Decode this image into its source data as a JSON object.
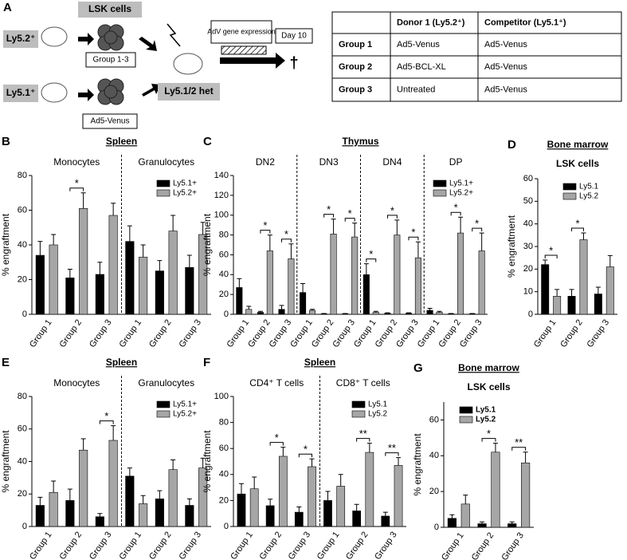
{
  "panel_a": {
    "label": "A",
    "lsk_cells": "LSK cells",
    "donor1": "Ly5.2⁺",
    "donor2": "Ly5.1⁺",
    "cells1": "Group 1-3",
    "cells2": "Ad5-Venus",
    "recipient": "Ly5.1/2 het",
    "expression": "AdV gene expression",
    "day": "Day 10",
    "death": "†",
    "table": {
      "header": [
        null,
        "Donor 1 (Ly5.2⁺)",
        "Competitor (Ly5.1⁺)"
      ],
      "rows": [
        [
          "Group 1",
          "Ad5-Venus",
          "Ad5-Venus"
        ],
        [
          "Group 2",
          "Ad5-BCL-XL",
          "Ad5-Venus"
        ],
        [
          "Group 3",
          "Untreated",
          "Ad5-Venus"
        ]
      ]
    }
  },
  "chart_data": [
    {
      "type": "bar",
      "panel": "B",
      "title": "Spleen",
      "ylabel": "% engraftment",
      "ylim": [
        0,
        80
      ],
      "yticks": [
        0,
        20,
        40,
        60,
        80
      ],
      "legend": "upper right",
      "groups": [
        {
          "name": "Monocytes",
          "categories": [
            "Group 1",
            "Group 2",
            "Group 3"
          ]
        },
        {
          "name": "Granulocytes",
          "categories": [
            "Group 1",
            "Group 2",
            "Group 3"
          ]
        }
      ],
      "series": [
        {
          "name": "Ly5.1+",
          "color": "#000000",
          "values": [
            34,
            21,
            23,
            42,
            25,
            27
          ],
          "errors": [
            8,
            5,
            7,
            9,
            6,
            7
          ]
        },
        {
          "name": "Ly5.2+",
          "color": "#a6a6a6",
          "values": [
            40,
            61,
            57,
            33,
            48,
            46
          ],
          "errors": [
            6,
            9,
            7,
            7,
            9,
            7
          ]
        }
      ],
      "significance": [
        null,
        "*",
        null,
        null,
        null,
        null
      ]
    },
    {
      "type": "bar",
      "panel": "C",
      "title": "Thymus",
      "ylabel": "% engraftment",
      "ylim": [
        0,
        140
      ],
      "yticks": [
        0,
        20,
        40,
        60,
        80,
        100,
        120,
        140
      ],
      "legend": "upper right",
      "groups": [
        {
          "name": "DN2",
          "categories": [
            "Group 1",
            "Group 2",
            "Group 3"
          ]
        },
        {
          "name": "DN3",
          "categories": [
            "Group 1",
            "Group 2",
            "Group 3"
          ]
        },
        {
          "name": "DN4",
          "categories": [
            "Group 1",
            "Group 2",
            "Group 3"
          ]
        },
        {
          "name": "DP",
          "categories": [
            "Group 1",
            "Group 2",
            "Group 3"
          ]
        }
      ],
      "series": [
        {
          "name": "Ly5.1+",
          "color": "#000000",
          "values": [
            27,
            2,
            5,
            22,
            0.5,
            0.5,
            40,
            1,
            1,
            4,
            0.5,
            0.5
          ],
          "errors": [
            9,
            1,
            4,
            9,
            0.3,
            0.3,
            11,
            0.5,
            0.5,
            2,
            0.3,
            0.3
          ]
        },
        {
          "name": "Ly5.2+",
          "color": "#a6a6a6",
          "values": [
            5,
            64,
            56,
            4,
            81,
            78,
            2,
            80,
            57,
            2,
            82,
            64
          ],
          "errors": [
            3,
            16,
            15,
            1,
            15,
            14,
            1,
            15,
            16,
            1,
            16,
            18
          ]
        }
      ],
      "significance": [
        null,
        "*",
        "*",
        null,
        "*",
        "*",
        "*",
        "*",
        "*",
        null,
        "*",
        "*"
      ]
    },
    {
      "type": "bar",
      "panel": "D",
      "title": "Bone marrow",
      "ylabel": "% engraftment",
      "ylim": [
        0,
        60
      ],
      "yticks": [
        0,
        10,
        20,
        30,
        40,
        50,
        60
      ],
      "legend": "upper right",
      "groups": [
        {
          "name": "LSK cells",
          "categories": [
            "Group 1",
            "Group 2",
            "Group 3"
          ]
        }
      ],
      "series": [
        {
          "name": "Ly5.1",
          "color": "#000000",
          "values": [
            22,
            8,
            9
          ],
          "errors": [
            2,
            3,
            3
          ]
        },
        {
          "name": "Ly5.2",
          "color": "#a6a6a6",
          "values": [
            8,
            33,
            21
          ],
          "errors": [
            3,
            3,
            5
          ]
        }
      ],
      "significance": [
        "*",
        "*",
        null
      ]
    },
    {
      "type": "bar",
      "panel": "E",
      "title": "Spleen",
      "ylabel": "% engraftment",
      "ylim": [
        0,
        80
      ],
      "yticks": [
        0,
        20,
        40,
        60,
        80
      ],
      "legend": "upper right",
      "groups": [
        {
          "name": "Monocytes",
          "categories": [
            "Group 1",
            "Group 2",
            "Group 3"
          ]
        },
        {
          "name": "Granulocytes",
          "categories": [
            "Group 1",
            "Group 2",
            "Group 3"
          ]
        }
      ],
      "series": [
        {
          "name": "Ly5.1+",
          "color": "#000000",
          "values": [
            13,
            16,
            6,
            31,
            17,
            13
          ],
          "errors": [
            5,
            7,
            2,
            5,
            5,
            4
          ]
        },
        {
          "name": "Ly5.2+",
          "color": "#a6a6a6",
          "values": [
            21,
            47,
            53,
            14,
            35,
            36
          ],
          "errors": [
            7,
            7,
            9,
            5,
            6,
            6
          ]
        }
      ],
      "significance": [
        null,
        null,
        "*",
        null,
        null,
        null
      ]
    },
    {
      "type": "bar",
      "panel": "F",
      "title": "Spleen",
      "ylabel": "% engraftment",
      "ylim": [
        0,
        100
      ],
      "yticks": [
        0,
        20,
        40,
        60,
        80,
        100
      ],
      "legend": "upper right",
      "groups": [
        {
          "name": "CD4⁺ T cells",
          "categories": [
            "Group 1",
            "Group 2",
            "Group 3"
          ]
        },
        {
          "name": "CD8⁺ T cells",
          "categories": [
            "Group 1",
            "Group 2",
            "Group 3"
          ]
        }
      ],
      "series": [
        {
          "name": "Ly5.1",
          "color": "#000000",
          "values": [
            25,
            16,
            11,
            20,
            12,
            8
          ],
          "errors": [
            8,
            5,
            4,
            7,
            5,
            3
          ]
        },
        {
          "name": "Ly5.2",
          "color": "#a6a6a6",
          "values": [
            29,
            54,
            46,
            31,
            57,
            47
          ],
          "errors": [
            9,
            7,
            6,
            9,
            7,
            6
          ]
        }
      ],
      "significance": [
        null,
        "*",
        "*",
        null,
        "**",
        "**"
      ]
    },
    {
      "type": "bar",
      "panel": "G",
      "title": "Bone marrow",
      "ylabel": "% engraftment",
      "ylim": [
        0,
        70
      ],
      "yticks": [
        0,
        20,
        40,
        60
      ],
      "legend": "upper left",
      "groups": [
        {
          "name": "LSK cells",
          "categories": [
            "Group 1",
            "Group 2",
            "Group 3"
          ]
        }
      ],
      "series": [
        {
          "name": "Ly5.1",
          "color": "#000000",
          "values": [
            5,
            2,
            2
          ],
          "errors": [
            2,
            1,
            1
          ]
        },
        {
          "name": "Ly5.2",
          "color": "#a6a6a6",
          "values": [
            13,
            42,
            36
          ],
          "errors": [
            5,
            5,
            6
          ]
        }
      ],
      "significance": [
        null,
        "*",
        "**"
      ]
    }
  ]
}
